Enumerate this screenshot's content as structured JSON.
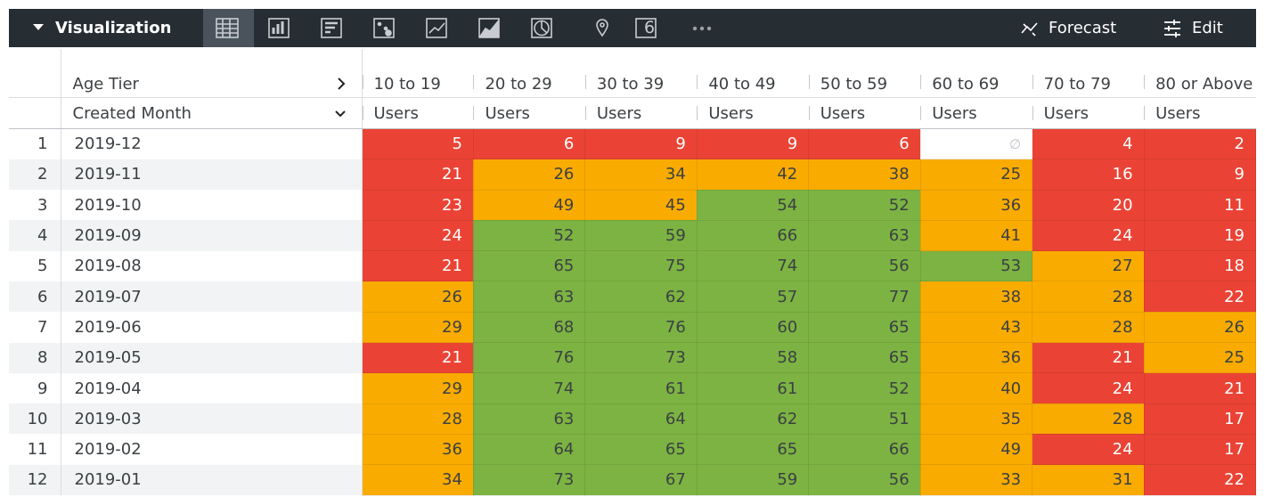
{
  "toolbar": {
    "title": "Visualization",
    "single_value_icon": "6",
    "actions": [
      "Forecast",
      "Edit"
    ]
  },
  "table": {
    "pivot_label": "Age Tier",
    "dimension_label": "Created Month",
    "pivots": [
      "10 to 19",
      "20 to 29",
      "30 to 39",
      "40 to 49",
      "50 to 59",
      "60 to 69",
      "70 to 79",
      "80 or Above"
    ],
    "measures": [
      "Users",
      "Users",
      "Users",
      "Users",
      "Users",
      "Users",
      "Users",
      "Users"
    ],
    "null_symbol": "∅",
    "color_rules": [
      {
        "below": 25,
        "fill": "#ea4335",
        "text": "#ffffff"
      },
      {
        "below": 51,
        "fill": "#f9ab00",
        "text": "#3c4043"
      },
      {
        "fill": "#7cb342",
        "text": "#3c4043"
      }
    ],
    "rows": [
      {
        "index": 1,
        "month": "2019-12",
        "values": [
          5,
          6,
          9,
          9,
          6,
          null,
          4,
          2
        ]
      },
      {
        "index": 2,
        "month": "2019-11",
        "values": [
          21,
          26,
          34,
          42,
          38,
          25,
          16,
          9
        ]
      },
      {
        "index": 3,
        "month": "2019-10",
        "values": [
          23,
          49,
          45,
          54,
          52,
          36,
          20,
          11
        ]
      },
      {
        "index": 4,
        "month": "2019-09",
        "values": [
          24,
          52,
          59,
          66,
          63,
          41,
          24,
          19
        ]
      },
      {
        "index": 5,
        "month": "2019-08",
        "values": [
          21,
          65,
          75,
          74,
          56,
          53,
          27,
          18
        ]
      },
      {
        "index": 6,
        "month": "2019-07",
        "values": [
          26,
          63,
          62,
          57,
          77,
          38,
          28,
          22
        ]
      },
      {
        "index": 7,
        "month": "2019-06",
        "values": [
          29,
          68,
          76,
          60,
          65,
          43,
          28,
          26
        ]
      },
      {
        "index": 8,
        "month": "2019-05",
        "values": [
          21,
          76,
          73,
          58,
          65,
          36,
          21,
          25
        ]
      },
      {
        "index": 9,
        "month": "2019-04",
        "values": [
          29,
          74,
          61,
          61,
          52,
          40,
          24,
          21
        ]
      },
      {
        "index": 10,
        "month": "2019-03",
        "values": [
          28,
          63,
          64,
          62,
          51,
          35,
          28,
          17
        ]
      },
      {
        "index": 11,
        "month": "2019-02",
        "values": [
          36,
          64,
          65,
          65,
          66,
          49,
          24,
          17
        ]
      },
      {
        "index": 12,
        "month": "2019-01",
        "values": [
          34,
          73,
          67,
          59,
          56,
          33,
          31,
          22
        ]
      }
    ]
  }
}
